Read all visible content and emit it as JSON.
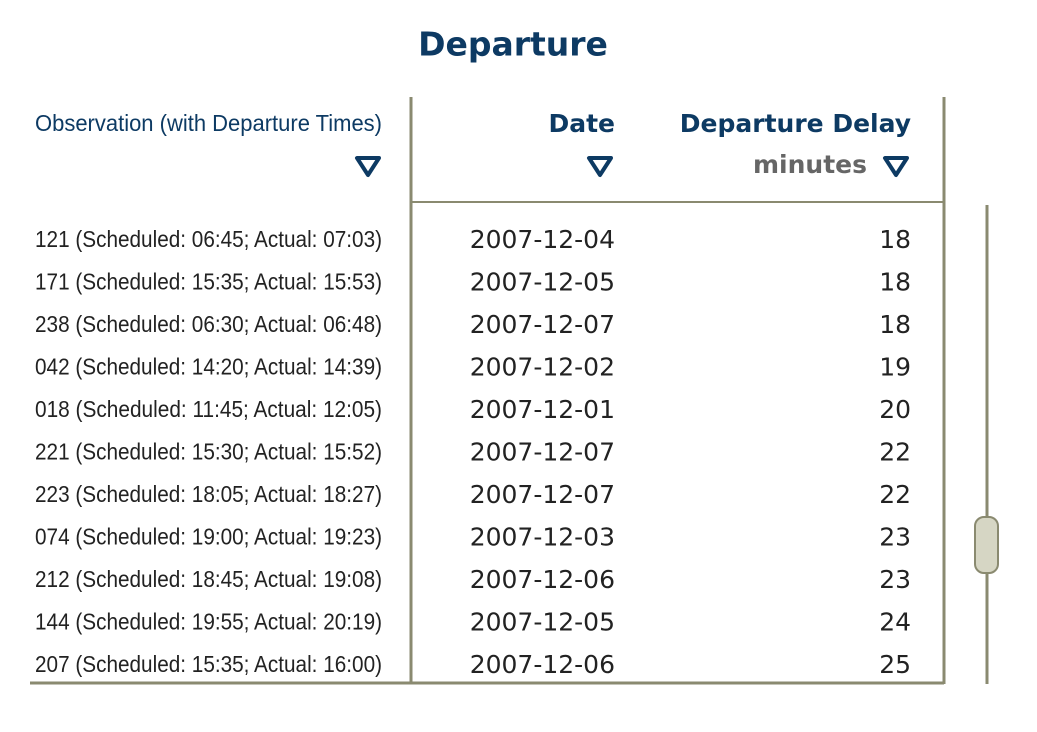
{
  "title": "Departure",
  "table": {
    "columns": [
      {
        "label": "Observation (with Departure Times)"
      },
      {
        "label": "Date"
      },
      {
        "label": "Departure Delay",
        "unit": "minutes"
      }
    ],
    "rows": [
      [
        "121 (Scheduled: 06:45; Actual: 07:03)",
        "2007-12-04",
        18
      ],
      [
        "171 (Scheduled: 15:35; Actual: 15:53)",
        "2007-12-05",
        18
      ],
      [
        "238 (Scheduled: 06:30; Actual: 06:48)",
        "2007-12-07",
        18
      ],
      [
        "042 (Scheduled: 14:20; Actual: 14:39)",
        "2007-12-02",
        19
      ],
      [
        "018 (Scheduled: 11:45; Actual: 12:05)",
        "2007-12-01",
        20
      ],
      [
        "221 (Scheduled: 15:30; Actual: 15:52)",
        "2007-12-07",
        22
      ],
      [
        "223 (Scheduled: 18:05; Actual: 18:27)",
        "2007-12-07",
        22
      ],
      [
        "074 (Scheduled: 19:00; Actual: 19:23)",
        "2007-12-03",
        23
      ],
      [
        "212 (Scheduled: 18:45; Actual: 19:08)",
        "2007-12-06",
        23
      ],
      [
        "144 (Scheduled: 19:55; Actual: 20:19)",
        "2007-12-05",
        24
      ],
      [
        "207 (Scheduled: 15:35; Actual: 16:00)",
        "2007-12-06",
        25
      ]
    ]
  }
}
